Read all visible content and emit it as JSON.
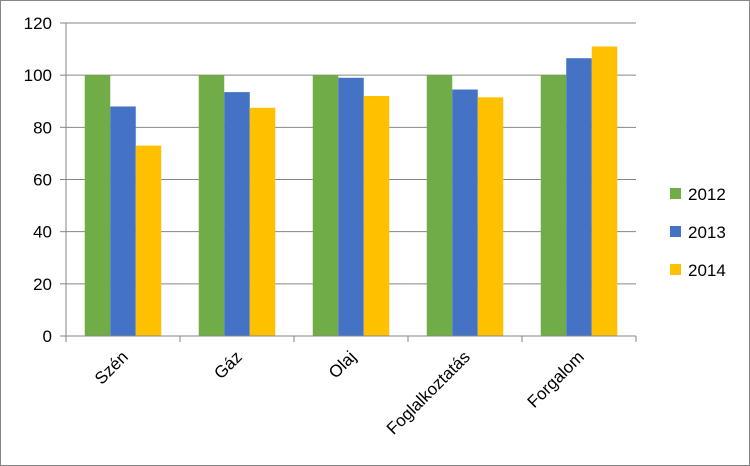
{
  "chart_data": {
    "type": "bar",
    "title": "",
    "xlabel": "",
    "ylabel": "",
    "categories": [
      "Szén",
      "Gáz",
      "Olaj",
      "Foglalkoztatás",
      "Forgalom"
    ],
    "series": [
      {
        "name": "2012",
        "color": "#70ad47",
        "values": [
          100,
          100,
          100,
          100,
          100
        ]
      },
      {
        "name": "2013",
        "color": "#4472c4",
        "values": [
          88,
          93.5,
          99,
          94.5,
          106.5
        ]
      },
      {
        "name": "2014",
        "color": "#ffc000",
        "values": [
          73,
          87.5,
          92,
          91.5,
          111
        ]
      }
    ],
    "ylim": [
      0,
      120
    ],
    "yticks": [
      "0",
      "20",
      "40",
      "60",
      "80",
      "100",
      "120"
    ],
    "grid": true,
    "legend_position": "right"
  }
}
